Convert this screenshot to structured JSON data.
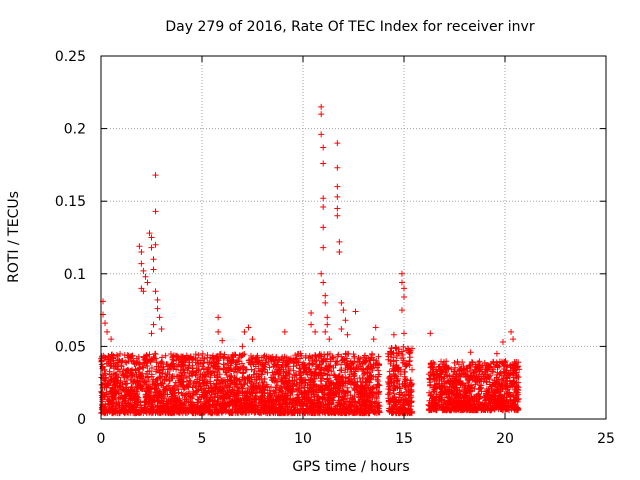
{
  "chart_data": {
    "type": "scatter",
    "title": "Day 279 of 2016, Rate Of TEC Index for receiver invr",
    "xlabel": "GPS time / hours",
    "ylabel": "ROTI / TECUs",
    "xlim": [
      0,
      25
    ],
    "ylim": [
      0,
      0.25
    ],
    "xticks": [
      0,
      5,
      10,
      15,
      20,
      25
    ],
    "xtick_labels": [
      "0",
      "5",
      "10",
      "15",
      "20",
      "25"
    ],
    "yticks": [
      0,
      0.05,
      0.1,
      0.15,
      0.2,
      0.25
    ],
    "ytick_labels": [
      "0",
      "0.05",
      "0.1",
      "0.15",
      "0.2",
      "0.25"
    ],
    "grid": true,
    "marker": "+",
    "color": "#ff0000",
    "dense_bands": [
      {
        "x_start": 0.0,
        "x_end": 13.8,
        "y_low": 0.004,
        "y_high": 0.045
      },
      {
        "x_start": 14.2,
        "x_end": 15.4,
        "y_low": 0.004,
        "y_high": 0.05
      },
      {
        "x_start": 16.2,
        "x_end": 20.7,
        "y_low": 0.006,
        "y_high": 0.04
      }
    ],
    "series": [
      {
        "name": "ROTI",
        "points": [
          [
            0.1,
            0.081
          ],
          [
            0.1,
            0.072
          ],
          [
            0.2,
            0.066
          ],
          [
            0.3,
            0.06
          ],
          [
            0.5,
            0.055
          ],
          [
            1.9,
            0.119
          ],
          [
            2.0,
            0.115
          ],
          [
            2.0,
            0.107
          ],
          [
            2.1,
            0.102
          ],
          [
            2.2,
            0.098
          ],
          [
            2.1,
            0.088
          ],
          [
            2.0,
            0.09
          ],
          [
            2.3,
            0.094
          ],
          [
            2.4,
            0.128
          ],
          [
            2.5,
            0.125
          ],
          [
            2.5,
            0.118
          ],
          [
            2.6,
            0.11
          ],
          [
            2.6,
            0.103
          ],
          [
            2.7,
            0.168
          ],
          [
            2.7,
            0.143
          ],
          [
            2.7,
            0.12
          ],
          [
            2.7,
            0.088
          ],
          [
            2.8,
            0.082
          ],
          [
            2.8,
            0.076
          ],
          [
            2.9,
            0.07
          ],
          [
            2.6,
            0.065
          ],
          [
            3.0,
            0.062
          ],
          [
            2.5,
            0.059
          ],
          [
            5.8,
            0.07
          ],
          [
            5.8,
            0.06
          ],
          [
            6.0,
            0.054
          ],
          [
            7.1,
            0.06
          ],
          [
            7.3,
            0.063
          ],
          [
            7.5,
            0.055
          ],
          [
            7.0,
            0.05
          ],
          [
            9.1,
            0.06
          ],
          [
            10.4,
            0.073
          ],
          [
            10.4,
            0.065
          ],
          [
            10.6,
            0.06
          ],
          [
            10.9,
            0.215
          ],
          [
            10.9,
            0.21
          ],
          [
            10.9,
            0.196
          ],
          [
            11.0,
            0.187
          ],
          [
            11.0,
            0.176
          ],
          [
            11.0,
            0.152
          ],
          [
            11.0,
            0.146
          ],
          [
            11.0,
            0.132
          ],
          [
            11.0,
            0.118
          ],
          [
            10.9,
            0.1
          ],
          [
            11.0,
            0.094
          ],
          [
            11.1,
            0.085
          ],
          [
            11.1,
            0.08
          ],
          [
            11.2,
            0.07
          ],
          [
            11.2,
            0.065
          ],
          [
            11.1,
            0.06
          ],
          [
            11.3,
            0.055
          ],
          [
            11.7,
            0.19
          ],
          [
            11.7,
            0.173
          ],
          [
            11.7,
            0.16
          ],
          [
            11.7,
            0.153
          ],
          [
            11.7,
            0.145
          ],
          [
            11.7,
            0.14
          ],
          [
            11.8,
            0.122
          ],
          [
            11.8,
            0.115
          ],
          [
            11.9,
            0.08
          ],
          [
            12.0,
            0.075
          ],
          [
            12.1,
            0.068
          ],
          [
            11.9,
            0.062
          ],
          [
            12.2,
            0.058
          ],
          [
            12.6,
            0.074
          ],
          [
            13.6,
            0.063
          ],
          [
            13.5,
            0.055
          ],
          [
            14.9,
            0.1
          ],
          [
            14.9,
            0.094
          ],
          [
            15.0,
            0.09
          ],
          [
            15.0,
            0.084
          ],
          [
            14.9,
            0.075
          ],
          [
            15.0,
            0.059
          ],
          [
            14.5,
            0.058
          ],
          [
            16.3,
            0.059
          ],
          [
            19.9,
            0.053
          ],
          [
            20.3,
            0.06
          ],
          [
            20.4,
            0.055
          ],
          [
            18.3,
            0.046
          ],
          [
            19.6,
            0.045
          ]
        ]
      }
    ]
  }
}
